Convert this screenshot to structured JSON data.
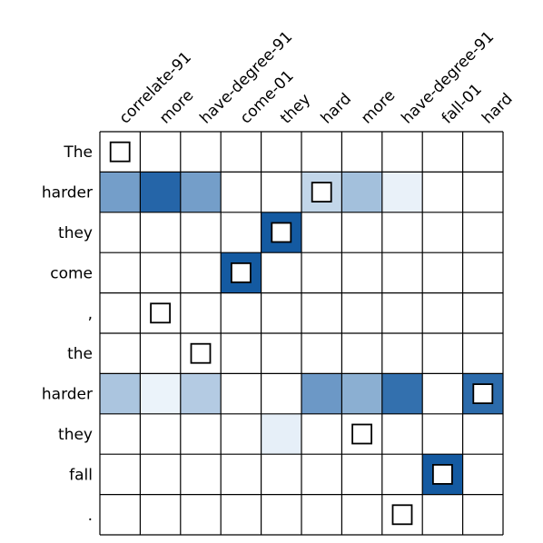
{
  "chart_data": {
    "type": "heatmap",
    "title": "",
    "x_labels": [
      "correlate-91",
      "more",
      "have-degree-91",
      "come-01",
      "they",
      "hard",
      "more",
      "have-degree-91",
      "fall-01",
      "hard"
    ],
    "y_labels": [
      "The",
      "harder",
      "they",
      "come",
      ",",
      "the",
      "harder",
      "they",
      "fall",
      "."
    ],
    "values": [
      [
        0.0,
        0.0,
        0.0,
        0.0,
        0.0,
        0.0,
        0.0,
        0.0,
        0.0,
        0.0
      ],
      [
        0.55,
        0.88,
        0.55,
        0.0,
        0.0,
        0.22,
        0.35,
        0.06,
        0.0,
        0.0
      ],
      [
        0.0,
        0.0,
        0.0,
        0.0,
        0.95,
        0.0,
        0.0,
        0.0,
        0.0,
        0.0
      ],
      [
        0.0,
        0.0,
        0.0,
        0.95,
        0.0,
        0.0,
        0.0,
        0.0,
        0.0,
        0.0
      ],
      [
        0.0,
        0.0,
        0.0,
        0.0,
        0.0,
        0.0,
        0.0,
        0.0,
        0.0,
        0.0
      ],
      [
        0.0,
        0.0,
        0.0,
        0.0,
        0.0,
        0.0,
        0.0,
        0.0,
        0.0,
        0.0
      ],
      [
        0.32,
        0.05,
        0.28,
        0.0,
        0.0,
        0.58,
        0.45,
        0.82,
        0.0,
        0.85
      ],
      [
        0.0,
        0.0,
        0.0,
        0.0,
        0.07,
        0.0,
        0.0,
        0.0,
        0.0,
        0.0
      ],
      [
        0.0,
        0.0,
        0.0,
        0.0,
        0.0,
        0.0,
        0.0,
        0.0,
        0.95,
        0.0
      ],
      [
        0.0,
        0.0,
        0.0,
        0.0,
        0.0,
        0.0,
        0.0,
        0.0,
        0.0,
        0.0
      ]
    ],
    "alignments": [
      [
        0,
        0
      ],
      [
        1,
        5
      ],
      [
        2,
        4
      ],
      [
        3,
        3
      ],
      [
        4,
        1
      ],
      [
        5,
        2
      ],
      [
        6,
        9
      ],
      [
        7,
        6
      ],
      [
        8,
        8
      ],
      [
        9,
        7
      ]
    ],
    "colormap": {
      "low": "#f7fbff",
      "high": "#08519c"
    },
    "value_range": [
      0,
      1
    ],
    "x_labels_position": "top",
    "x_label_rotation": -45,
    "grid": true,
    "grid_color": "#000000",
    "marker_edge_color": "#000000",
    "marker_fill_color": "#ffffff"
  }
}
